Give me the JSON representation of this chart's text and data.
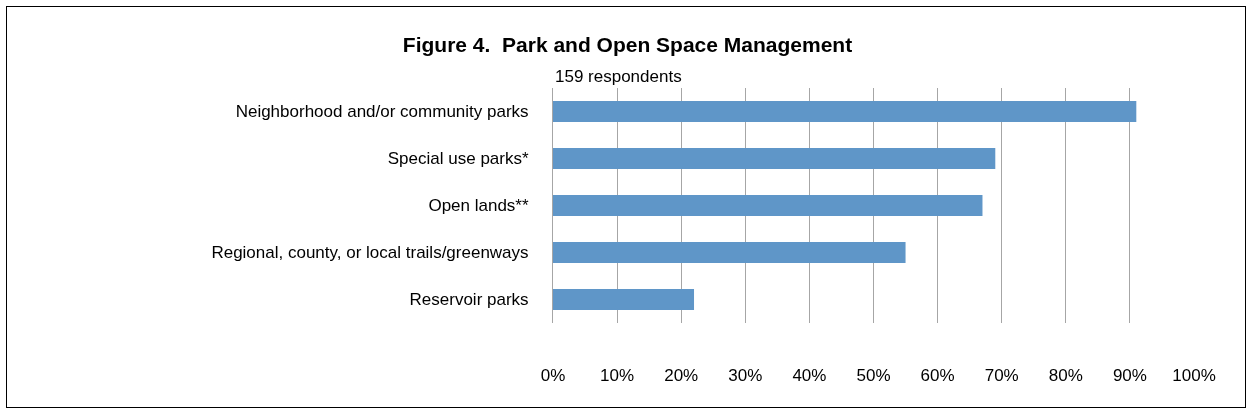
{
  "chart_data": {
    "type": "bar",
    "orientation": "horizontal",
    "title": "Figure 4.  Park and Open Space Management",
    "subtitle": "159 respondents",
    "categories": [
      "Neighborhood and/or community parks",
      "Special use parks*",
      "Open lands**",
      "Regional, county, or local trails/greenways",
      "Reservoir parks"
    ],
    "values": [
      91,
      69,
      67,
      55,
      22
    ],
    "color": "#5f96c8",
    "xlim": [
      0,
      100
    ],
    "xticks": [
      {
        "value": 0,
        "label": "0%"
      },
      {
        "value": 10,
        "label": "10%"
      },
      {
        "value": 20,
        "label": "20%"
      },
      {
        "value": 30,
        "label": "30%"
      },
      {
        "value": 40,
        "label": "40%"
      },
      {
        "value": 50,
        "label": "50%"
      },
      {
        "value": 60,
        "label": "60%"
      },
      {
        "value": 70,
        "label": "70%"
      },
      {
        "value": 80,
        "label": "80%"
      },
      {
        "value": 90,
        "label": "90%"
      },
      {
        "value": 100,
        "label": "100%"
      }
    ],
    "grid": "x"
  }
}
